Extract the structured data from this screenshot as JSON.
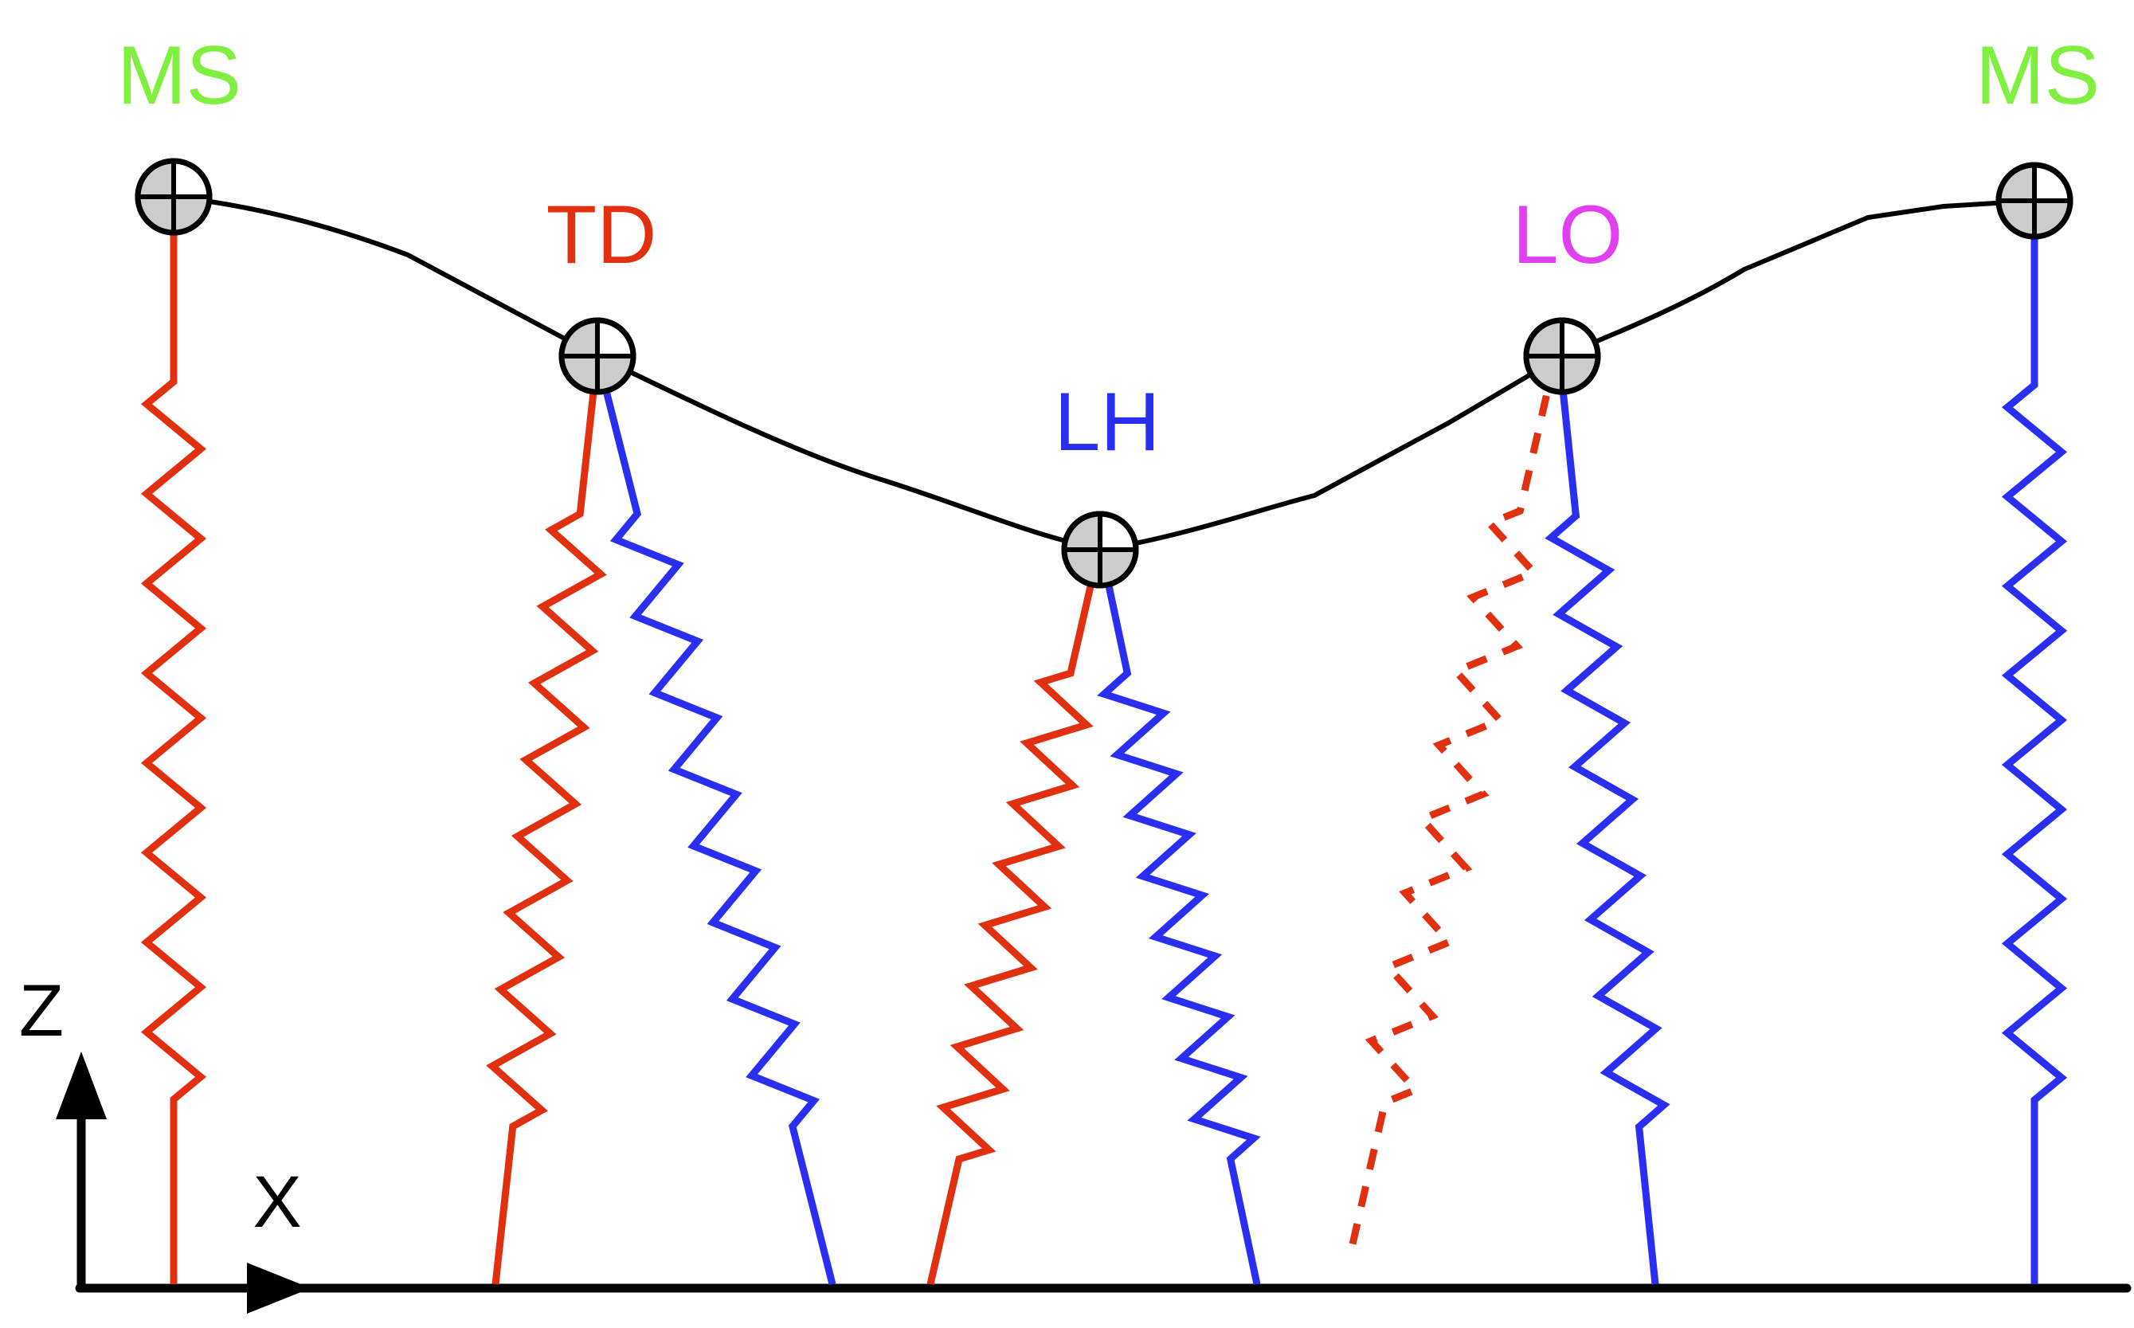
{
  "labels": {
    "ms_left": "MS",
    "td": "TD",
    "lh": "LH",
    "lo": "LO",
    "ms_right": "MS"
  },
  "axes": {
    "z": "Z",
    "x": "X"
  },
  "colors": {
    "ms": "#80f040",
    "td": "#e03010",
    "lh": "#2a2ef0",
    "lo": "#e040f0",
    "leg_red": "#e03010",
    "leg_blue": "#2a2ef0",
    "com_path": "#000000",
    "com_marker_fill": "#cccccc"
  },
  "icons": {
    "com_marker": "center-of-mass-symbol",
    "spring_leg": "zigzag-spring",
    "axis_arrow": "arrow"
  }
}
